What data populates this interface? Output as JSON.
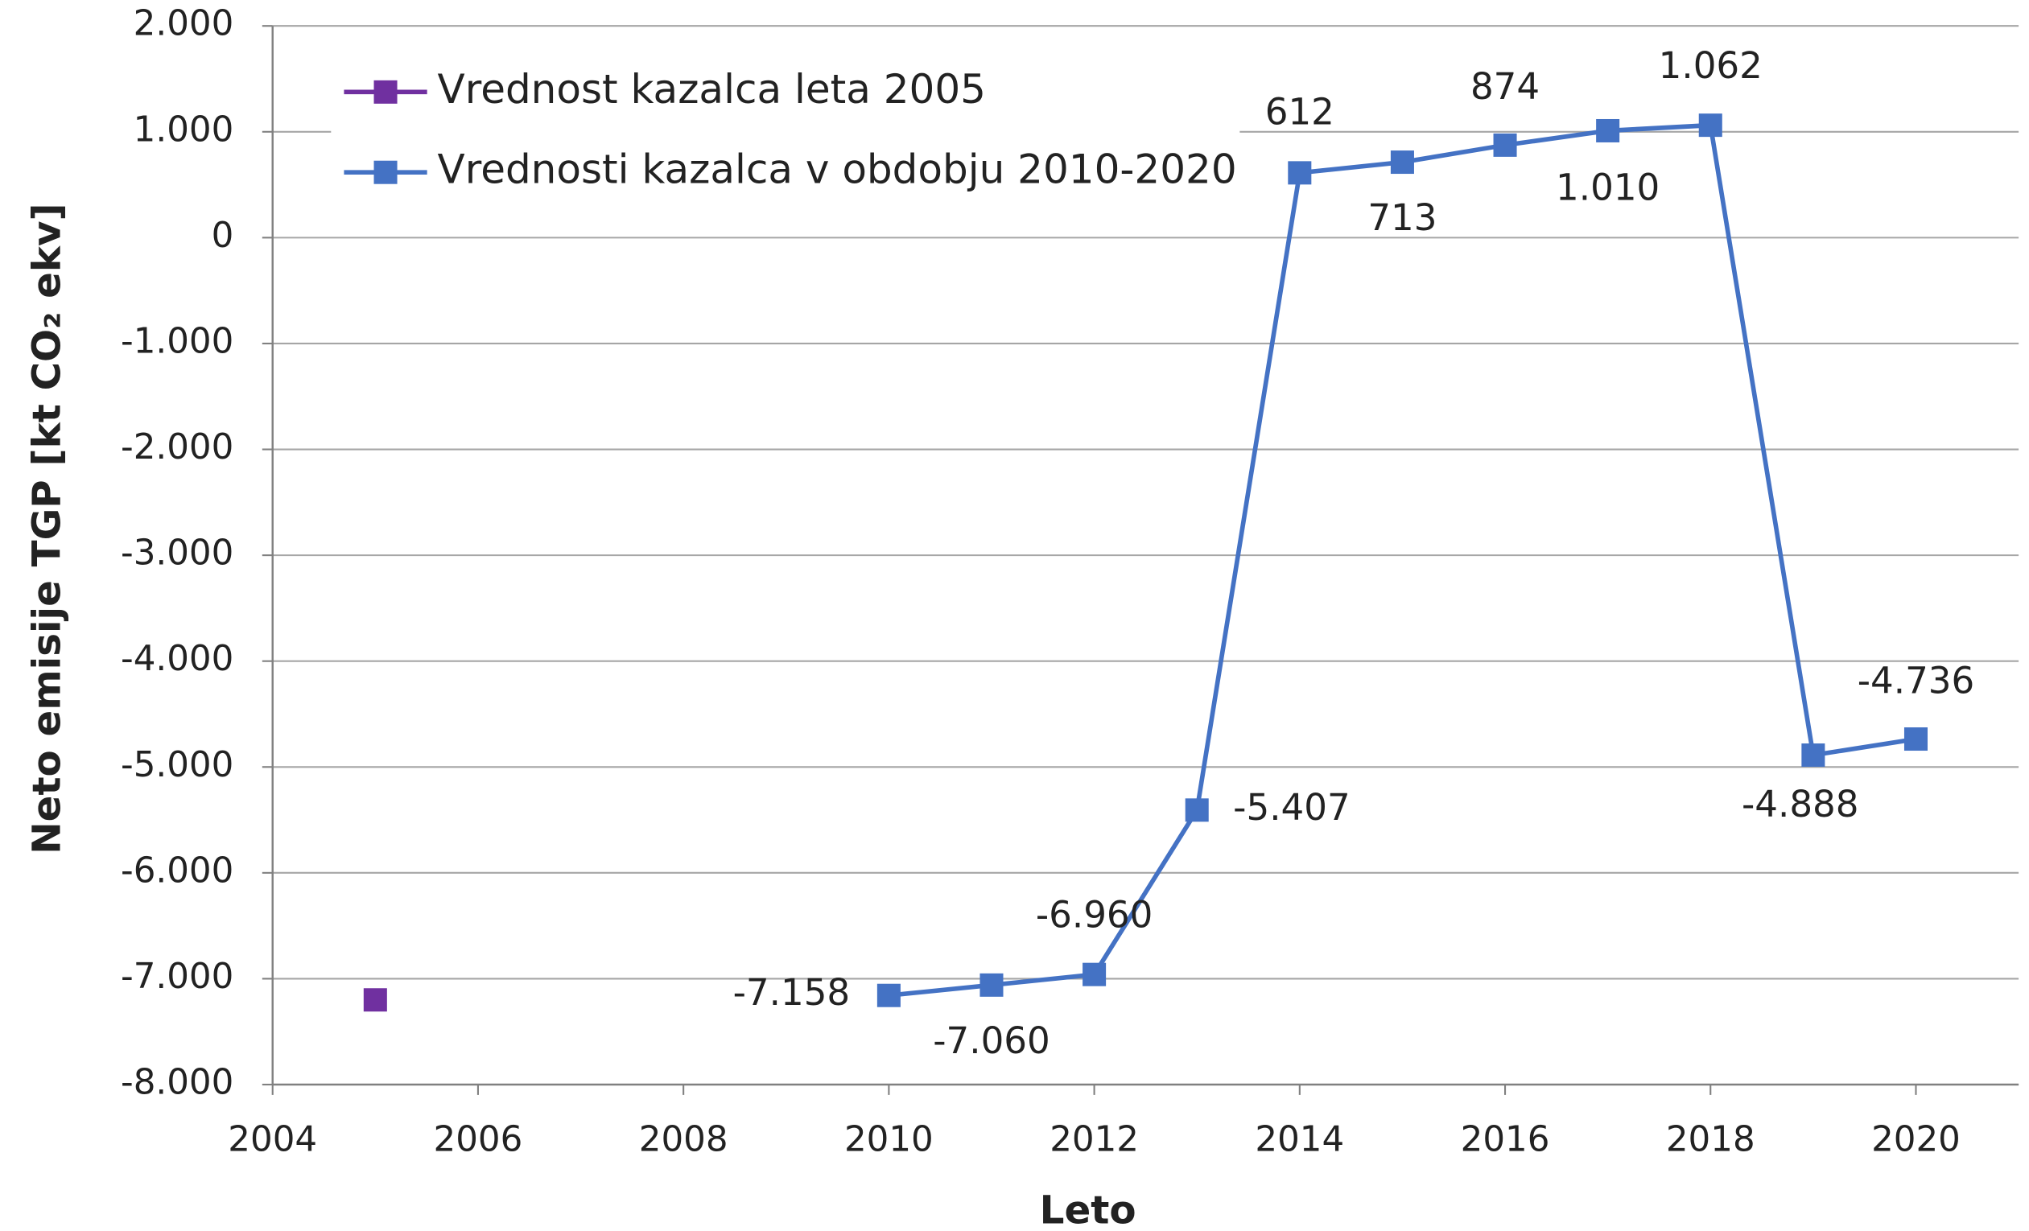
{
  "chart_data": {
    "type": "line",
    "x_label": "Leto",
    "y_label": "Neto emisije TGP [kt CO₂ ekv]",
    "legend": "upper left",
    "grid": true,
    "xlim": [
      2004,
      2021
    ],
    "xticks": [
      2004,
      2006,
      2008,
      2010,
      2012,
      2014,
      2016,
      2018,
      2020
    ],
    "ylim": [
      -8000,
      2000
    ],
    "yticks": [
      {
        "value": -8000,
        "label": "-8.000"
      },
      {
        "value": -7000,
        "label": "-7.000"
      },
      {
        "value": -6000,
        "label": "-6.000"
      },
      {
        "value": -5000,
        "label": "-5.000"
      },
      {
        "value": -4000,
        "label": "-4.000"
      },
      {
        "value": -3000,
        "label": "-3.000"
      },
      {
        "value": -2000,
        "label": "-2.000"
      },
      {
        "value": -1000,
        "label": "-1.000"
      },
      0,
      {
        "value": 1000,
        "label": "1.000"
      },
      {
        "value": 2000,
        "label": "2.000"
      }
    ],
    "series": [
      {
        "name": "Vrednost kazalca leta 2005",
        "color": "#7030a0",
        "x": [
          2005
        ],
        "values": [
          -7200
        ]
      },
      {
        "name": "Vrednosti kazalca v obdobju 2010-2020",
        "color": "#4472c4",
        "x": [
          2010,
          2011,
          2012,
          2013,
          2014,
          2015,
          2016,
          2017,
          2018,
          2019,
          2020
        ],
        "values": [
          -7158,
          -7060,
          -6960,
          -5407,
          612,
          713,
          874,
          1010,
          1062,
          -4888,
          -4736
        ],
        "value_labels": [
          "-7.158",
          "-7.060",
          "-6.960",
          "-5.407",
          "612",
          "713",
          "874",
          "1.010",
          "1.062",
          "-4.888",
          "-4.736"
        ]
      }
    ]
  }
}
